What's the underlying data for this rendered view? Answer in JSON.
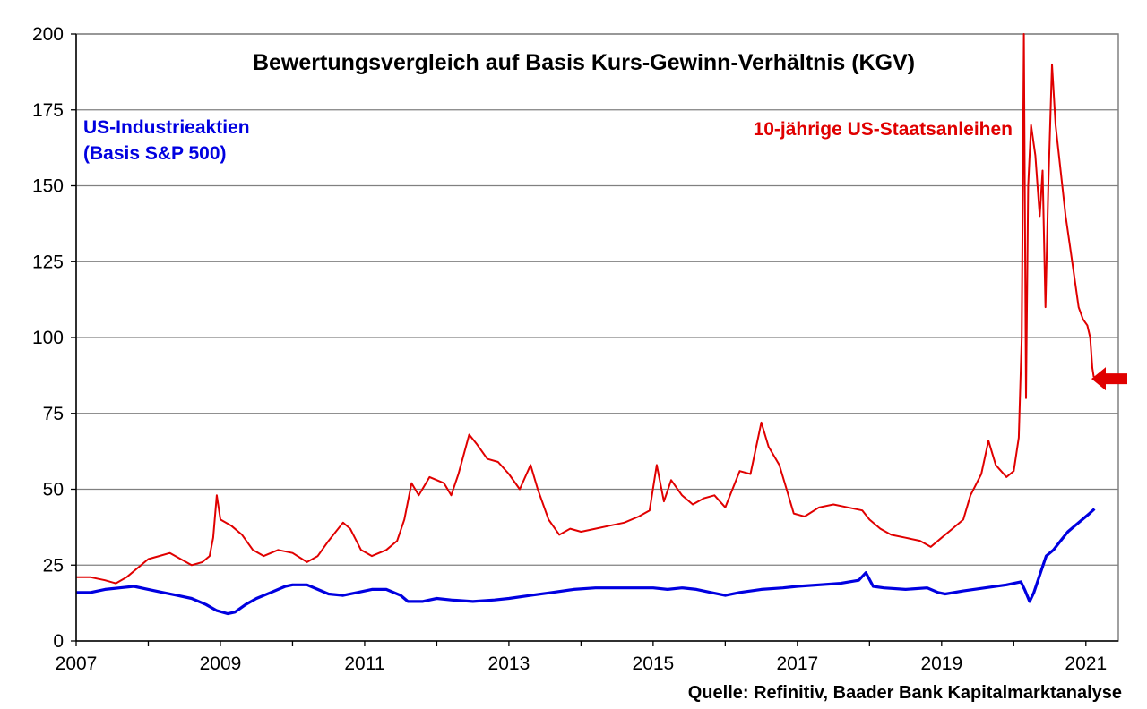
{
  "chart_data": {
    "type": "line",
    "title": "Bewertungsvergleich auf Basis Kurs-Gewinn-Verhältnis (KGV)",
    "source": "Quelle: Refinitiv, Baader Bank Kapitalmarktanalyse",
    "xlim": [
      2007,
      2021.45
    ],
    "ylim": [
      0,
      200
    ],
    "x_ticks": [
      2007,
      2009,
      2011,
      2013,
      2015,
      2017,
      2019,
      2021
    ],
    "y_ticks": [
      0,
      25,
      50,
      75,
      100,
      125,
      150,
      175,
      200
    ],
    "grid": true,
    "series": [
      {
        "name_lines": [
          "US-Industrieaktien",
          "(Basis S&P 500)"
        ],
        "color": "#0000e0",
        "points": [
          [
            2007.0,
            16
          ],
          [
            2007.2,
            16
          ],
          [
            2007.4,
            17
          ],
          [
            2007.6,
            17.5
          ],
          [
            2007.8,
            18
          ],
          [
            2008.0,
            17
          ],
          [
            2008.2,
            16
          ],
          [
            2008.4,
            15
          ],
          [
            2008.6,
            14
          ],
          [
            2008.8,
            12
          ],
          [
            2008.95,
            10
          ],
          [
            2009.1,
            9
          ],
          [
            2009.2,
            9.5
          ],
          [
            2009.35,
            12
          ],
          [
            2009.5,
            14
          ],
          [
            2009.7,
            16
          ],
          [
            2009.9,
            18
          ],
          [
            2010.0,
            18.5
          ],
          [
            2010.2,
            18.5
          ],
          [
            2010.35,
            17
          ],
          [
            2010.5,
            15.5
          ],
          [
            2010.7,
            15
          ],
          [
            2010.9,
            16
          ],
          [
            2011.1,
            17
          ],
          [
            2011.3,
            17
          ],
          [
            2011.5,
            15
          ],
          [
            2011.6,
            13
          ],
          [
            2011.8,
            13
          ],
          [
            2012.0,
            14
          ],
          [
            2012.2,
            13.5
          ],
          [
            2012.5,
            13
          ],
          [
            2012.8,
            13.5
          ],
          [
            2013.0,
            14
          ],
          [
            2013.3,
            15
          ],
          [
            2013.6,
            16
          ],
          [
            2013.9,
            17
          ],
          [
            2014.2,
            17.5
          ],
          [
            2014.5,
            17.5
          ],
          [
            2014.8,
            17.5
          ],
          [
            2015.0,
            17.5
          ],
          [
            2015.2,
            17
          ],
          [
            2015.4,
            17.5
          ],
          [
            2015.6,
            17
          ],
          [
            2015.8,
            16
          ],
          [
            2016.0,
            15
          ],
          [
            2016.2,
            16
          ],
          [
            2016.5,
            17
          ],
          [
            2016.8,
            17.5
          ],
          [
            2017.0,
            18
          ],
          [
            2017.3,
            18.5
          ],
          [
            2017.6,
            19
          ],
          [
            2017.85,
            20
          ],
          [
            2017.95,
            22.5
          ],
          [
            2018.05,
            18
          ],
          [
            2018.2,
            17.5
          ],
          [
            2018.5,
            17
          ],
          [
            2018.8,
            17.5
          ],
          [
            2018.95,
            16
          ],
          [
            2019.05,
            15.5
          ],
          [
            2019.3,
            16.5
          ],
          [
            2019.6,
            17.5
          ],
          [
            2019.9,
            18.5
          ],
          [
            2020.1,
            19.5
          ],
          [
            2020.15,
            17
          ],
          [
            2020.22,
            13
          ],
          [
            2020.28,
            16
          ],
          [
            2020.35,
            21
          ],
          [
            2020.45,
            28
          ],
          [
            2020.55,
            30
          ],
          [
            2020.65,
            33
          ],
          [
            2020.75,
            36
          ],
          [
            2020.85,
            38
          ],
          [
            2020.95,
            40
          ],
          [
            2021.05,
            42
          ],
          [
            2021.12,
            43.5
          ]
        ]
      },
      {
        "name_lines": [
          "10-jährige US-Staatsanleihen"
        ],
        "color": "#e00000",
        "points": [
          [
            2007.0,
            21
          ],
          [
            2007.2,
            21
          ],
          [
            2007.4,
            20
          ],
          [
            2007.55,
            19
          ],
          [
            2007.7,
            21
          ],
          [
            2007.85,
            24
          ],
          [
            2008.0,
            27
          ],
          [
            2008.15,
            28
          ],
          [
            2008.3,
            29
          ],
          [
            2008.45,
            27
          ],
          [
            2008.6,
            25
          ],
          [
            2008.75,
            26
          ],
          [
            2008.85,
            28
          ],
          [
            2008.9,
            34
          ],
          [
            2008.95,
            48
          ],
          [
            2009.0,
            40
          ],
          [
            2009.15,
            38
          ],
          [
            2009.3,
            35
          ],
          [
            2009.45,
            30
          ],
          [
            2009.6,
            28
          ],
          [
            2009.8,
            30
          ],
          [
            2010.0,
            29
          ],
          [
            2010.2,
            26
          ],
          [
            2010.35,
            28
          ],
          [
            2010.5,
            33
          ],
          [
            2010.7,
            39
          ],
          [
            2010.8,
            37
          ],
          [
            2010.95,
            30
          ],
          [
            2011.1,
            28
          ],
          [
            2011.3,
            30
          ],
          [
            2011.45,
            33
          ],
          [
            2011.55,
            40
          ],
          [
            2011.65,
            52
          ],
          [
            2011.75,
            48
          ],
          [
            2011.9,
            54
          ],
          [
            2012.1,
            52
          ],
          [
            2012.2,
            48
          ],
          [
            2012.3,
            55
          ],
          [
            2012.45,
            68
          ],
          [
            2012.55,
            65
          ],
          [
            2012.7,
            60
          ],
          [
            2012.85,
            59
          ],
          [
            2013.0,
            55
          ],
          [
            2013.15,
            50
          ],
          [
            2013.3,
            58
          ],
          [
            2013.4,
            50
          ],
          [
            2013.55,
            40
          ],
          [
            2013.7,
            35
          ],
          [
            2013.85,
            37
          ],
          [
            2014.0,
            36
          ],
          [
            2014.2,
            37
          ],
          [
            2014.4,
            38
          ],
          [
            2014.6,
            39
          ],
          [
            2014.8,
            41
          ],
          [
            2014.95,
            43
          ],
          [
            2015.05,
            58
          ],
          [
            2015.15,
            46
          ],
          [
            2015.25,
            53
          ],
          [
            2015.4,
            48
          ],
          [
            2015.55,
            45
          ],
          [
            2015.7,
            47
          ],
          [
            2015.85,
            48
          ],
          [
            2016.0,
            44
          ],
          [
            2016.1,
            50
          ],
          [
            2016.2,
            56
          ],
          [
            2016.35,
            55
          ],
          [
            2016.5,
            72
          ],
          [
            2016.6,
            64
          ],
          [
            2016.75,
            58
          ],
          [
            2016.85,
            50
          ],
          [
            2016.95,
            42
          ],
          [
            2017.1,
            41
          ],
          [
            2017.3,
            44
          ],
          [
            2017.5,
            45
          ],
          [
            2017.7,
            44
          ],
          [
            2017.9,
            43
          ],
          [
            2018.0,
            40
          ],
          [
            2018.15,
            37
          ],
          [
            2018.3,
            35
          ],
          [
            2018.5,
            34
          ],
          [
            2018.7,
            33
          ],
          [
            2018.85,
            31
          ],
          [
            2019.0,
            34
          ],
          [
            2019.15,
            37
          ],
          [
            2019.3,
            40
          ],
          [
            2019.4,
            48
          ],
          [
            2019.55,
            55
          ],
          [
            2019.65,
            66
          ],
          [
            2019.75,
            58
          ],
          [
            2019.9,
            54
          ],
          [
            2020.0,
            56
          ],
          [
            2020.07,
            67
          ],
          [
            2020.11,
            100
          ],
          [
            2020.14,
            200
          ],
          [
            2020.17,
            80
          ],
          [
            2020.2,
            150
          ],
          [
            2020.24,
            170
          ],
          [
            2020.3,
            160
          ],
          [
            2020.36,
            140
          ],
          [
            2020.4,
            155
          ],
          [
            2020.44,
            110
          ],
          [
            2020.48,
            150
          ],
          [
            2020.53,
            190
          ],
          [
            2020.58,
            170
          ],
          [
            2020.65,
            155
          ],
          [
            2020.72,
            140
          ],
          [
            2020.78,
            130
          ],
          [
            2020.84,
            120
          ],
          [
            2020.9,
            110
          ],
          [
            2020.96,
            106
          ],
          [
            2021.02,
            104
          ],
          [
            2021.06,
            100
          ],
          [
            2021.09,
            90
          ],
          [
            2021.11,
            87
          ]
        ]
      }
    ],
    "annotations": [
      {
        "type": "arrow",
        "direction": "left",
        "color": "#e00000",
        "points_at": [
          2021.11,
          87
        ]
      }
    ]
  }
}
